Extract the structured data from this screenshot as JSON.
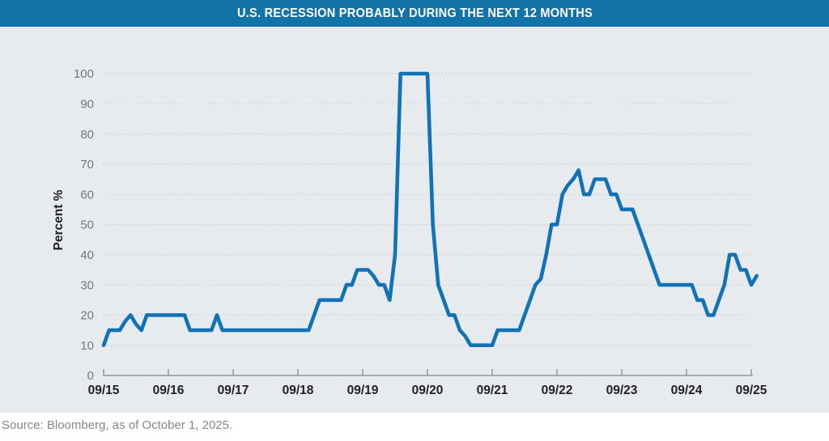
{
  "header": {
    "title": "U.S. RECESSION PROBABLY DURING THE NEXT 12 MONTHS",
    "bg_color": "#1173a8",
    "text_color": "#ffffff"
  },
  "chart_data": {
    "type": "line",
    "title": "U.S. RECESSION PROBABLY DURING THE NEXT 12 MONTHS",
    "xlabel": "",
    "ylabel": "Percent %",
    "ylim": [
      0,
      100
    ],
    "yticks": [
      0,
      10,
      20,
      30,
      40,
      50,
      60,
      70,
      80,
      90,
      100
    ],
    "grid": "horizontal-dotted",
    "legend_position": "none",
    "line_color": "#1173b5",
    "background_color": "#e7ebee",
    "grid_color": "#c9ced2",
    "axis_color": "#96989b",
    "ytick_color": "#76777a",
    "xtick_color": "#232021",
    "x_tick_labels": [
      "09/15",
      "09/16",
      "09/17",
      "09/18",
      "09/19",
      "09/20",
      "09/21",
      "09/22",
      "09/23",
      "09/24",
      "09/25"
    ],
    "x_tick_every_n_points": 12,
    "series": [
      {
        "name": "U.S. recession probability within next 12 months",
        "start": "2015-09",
        "frequency": "monthly",
        "values": [
          10,
          15,
          15,
          15,
          18,
          20,
          17,
          15,
          20,
          20,
          20,
          20,
          20,
          20,
          20,
          20,
          15,
          15,
          15,
          15,
          15,
          20,
          15,
          15,
          15,
          15,
          15,
          15,
          15,
          15,
          15,
          15,
          15,
          15,
          15,
          15,
          15,
          15,
          15,
          20,
          25,
          25,
          25,
          25,
          25,
          30,
          30,
          35,
          35,
          35,
          33,
          30,
          30,
          25,
          40,
          100,
          100,
          100,
          100,
          100,
          100,
          50,
          30,
          25,
          20,
          20,
          15,
          13,
          10,
          10,
          10,
          10,
          10,
          15,
          15,
          15,
          15,
          15,
          20,
          25,
          30,
          32,
          40,
          50,
          50,
          60,
          63,
          65,
          68,
          60,
          60,
          65,
          65,
          65,
          60,
          60,
          55,
          55,
          55,
          50,
          45,
          40,
          35,
          30,
          30,
          30,
          30,
          30,
          30,
          30,
          25,
          25,
          20,
          20,
          25,
          30,
          40,
          40,
          35,
          35,
          30,
          33
        ]
      }
    ]
  },
  "footer": {
    "source_text": "Source: Bloomberg, as of October 1, 2025.",
    "text_color": "#85878a"
  }
}
